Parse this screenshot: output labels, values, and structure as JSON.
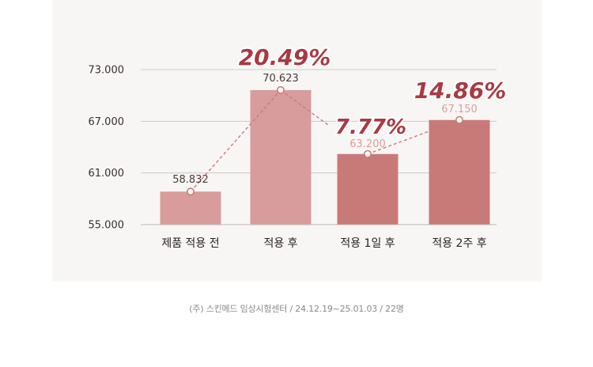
{
  "chart_data": {
    "type": "bar",
    "categories": [
      "제품 적용 전",
      "적용 후",
      "적용 1일 후",
      "적용 2주 후"
    ],
    "values": [
      58.832,
      70.623,
      63.2,
      67.15
    ],
    "value_labels": [
      "58.832",
      "70.623",
      "63.200",
      "67.150"
    ],
    "ylim": [
      55,
      73
    ],
    "yticks": [
      55,
      61,
      67,
      73
    ],
    "ytick_labels": [
      "55.000",
      "61.000",
      "67.000",
      "73.000"
    ],
    "grid": true,
    "annotations": [
      "20.49%",
      "7.77%",
      "14.86%"
    ],
    "colors": {
      "bars": [
        "#d89c9c",
        "#d89c9c",
        "#c87a78",
        "#c87a78"
      ],
      "line": "#c87a78",
      "annotation": "#a83a44",
      "value_label_dark": "#4a3a3a",
      "value_label_light": "#d4a0a0"
    }
  },
  "source_note": "(주) 스킨메드 임상시험센터 / 24.12.19~25.01.03 / 22명"
}
